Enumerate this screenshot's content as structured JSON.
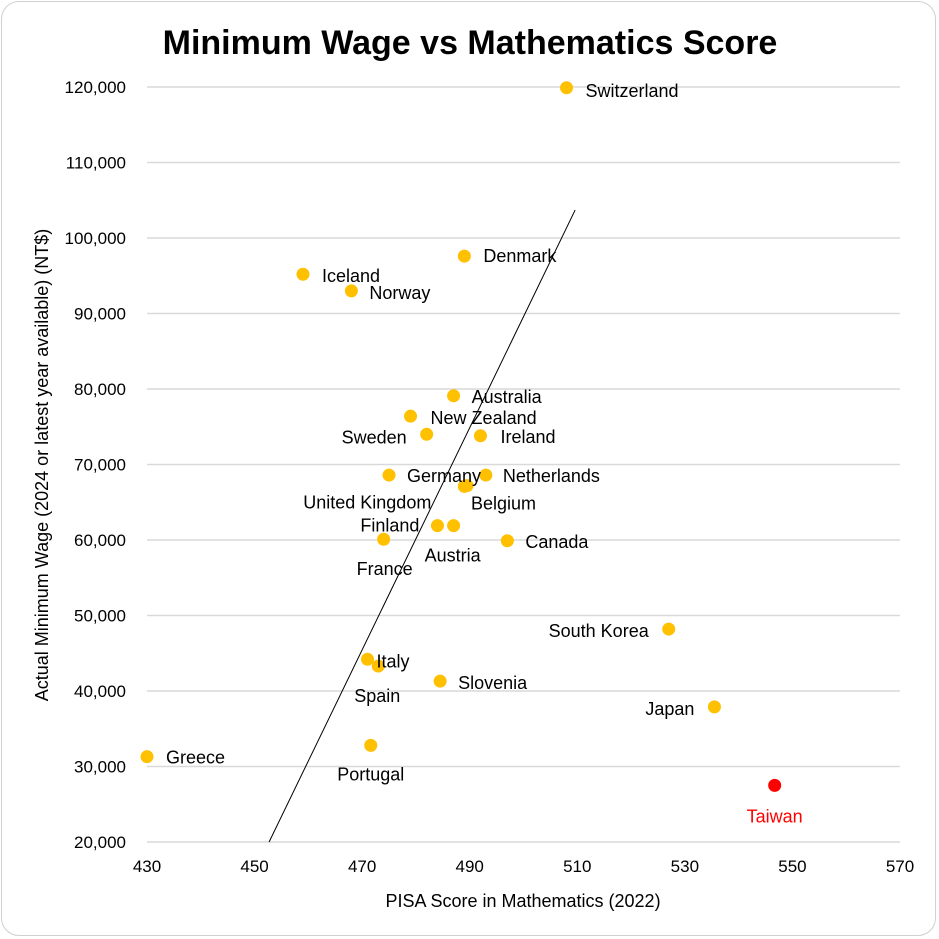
{
  "chart_data": {
    "type": "scatter",
    "title": "Minimum Wage vs Mathematics Score",
    "xlabel": "PISA Score in Mathematics (2022)",
    "ylabel": "Actual Minimum Wage (2024 or latest year available) (NT$)",
    "xlim": [
      430,
      570
    ],
    "ylim": [
      20000,
      120000
    ],
    "x_ticks": [
      "430",
      "450",
      "470",
      "490",
      "510",
      "530",
      "550",
      "570"
    ],
    "y_ticks": [
      "20,000",
      "30,000",
      "40,000",
      "50,000",
      "60,000",
      "70,000",
      "80,000",
      "90,000",
      "100,000",
      "110,000",
      "120,000"
    ],
    "grid": "horizontal",
    "marker_color": "#FFC000",
    "highlight_color": "#FF0000",
    "points": [
      {
        "label": "Switzerland",
        "x": 508,
        "y": 119900
      },
      {
        "label": "Denmark",
        "x": 489,
        "y": 97600
      },
      {
        "label": "Iceland",
        "x": 459,
        "y": 95200
      },
      {
        "label": "Norway",
        "x": 468,
        "y": 93000
      },
      {
        "label": "Australia",
        "x": 487,
        "y": 79100
      },
      {
        "label": "New Zealand",
        "x": 479,
        "y": 76400
      },
      {
        "label": "Sweden",
        "x": 482,
        "y": 74000
      },
      {
        "label": "Ireland",
        "x": 492,
        "y": 73800
      },
      {
        "label": "Netherlands",
        "x": 493,
        "y": 68600
      },
      {
        "label": "Germany",
        "x": 475,
        "y": 68600
      },
      {
        "label": "United Kingdom",
        "x": 489,
        "y": 67100
      },
      {
        "label": "Belgium",
        "x": 489.5,
        "y": 67200
      },
      {
        "label": "Finland",
        "x": 484,
        "y": 61900
      },
      {
        "label": "France",
        "x": 474,
        "y": 60100
      },
      {
        "label": "Canada",
        "x": 497,
        "y": 59900
      },
      {
        "label": "Austria",
        "x": 487,
        "y": 61900
      },
      {
        "label": "South Korea",
        "x": 527,
        "y": 48200
      },
      {
        "label": "Japan",
        "x": 535.5,
        "y": 37900
      },
      {
        "label": "Greece",
        "x": 430,
        "y": 31300
      },
      {
        "label": "Taiwan",
        "x": 546.7,
        "y": 27500,
        "highlight": true
      },
      {
        "label": "Italy",
        "x": 471,
        "y": 44200
      },
      {
        "label": "Slovenia",
        "x": 484.5,
        "y": 41300
      },
      {
        "label": "Spain",
        "x": 473,
        "y": 43300
      },
      {
        "label": "Portugal",
        "x": 471.6,
        "y": 32800
      }
    ],
    "trendline": {
      "x": [
        452.7,
        509.6
      ],
      "y": [
        20000,
        103700
      ]
    }
  }
}
